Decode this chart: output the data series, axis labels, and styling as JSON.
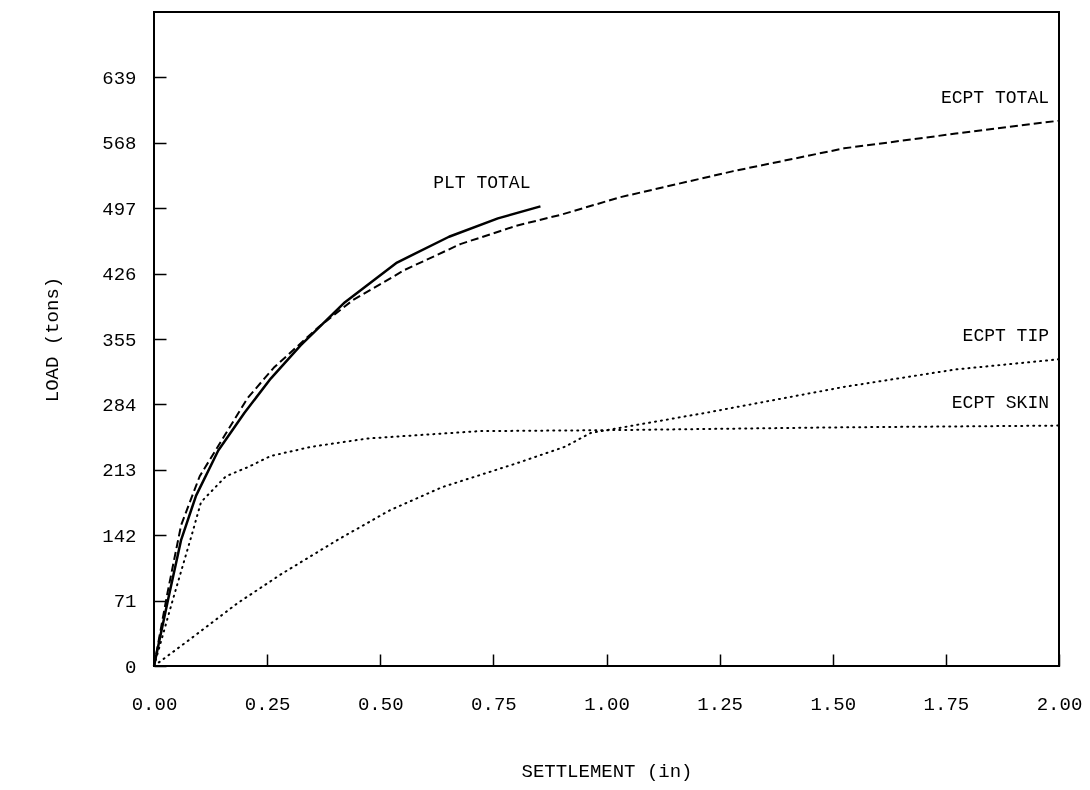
{
  "chart_data": {
    "type": "line",
    "xlabel": "SETTLEMENT (in)",
    "ylabel": "LOAD (tons)",
    "xlim": [
      0,
      2
    ],
    "ylim": [
      0,
      710
    ],
    "xticks": [
      {
        "value": 0,
        "label": "0.00"
      },
      {
        "value": 0.25,
        "label": "0.25"
      },
      {
        "value": 0.5,
        "label": "0.50"
      },
      {
        "value": 0.75,
        "label": "0.75"
      },
      {
        "value": 1,
        "label": "1.00"
      },
      {
        "value": 1.25,
        "label": "1.25"
      },
      {
        "value": 1.5,
        "label": "1.50"
      },
      {
        "value": 1.75,
        "label": "1.75"
      },
      {
        "value": 2,
        "label": "2.00"
      }
    ],
    "yticks": [
      0,
      71,
      142,
      213,
      284,
      355,
      426,
      497,
      568,
      639
    ],
    "grid": false,
    "marker": "none",
    "series": [
      {
        "name": "PLT TOTAL",
        "color": "#000000",
        "line_style": "solid",
        "x": [
          0,
          0.031,
          0.06,
          0.093,
          0.142,
          0.2,
          0.258,
          0.324,
          0.422,
          0.537,
          0.652,
          0.76,
          0.854
        ],
        "values": [
          0,
          72,
          137,
          185,
          234,
          275,
          312,
          348,
          395,
          438,
          466,
          486,
          499
        ]
      },
      {
        "name": "ECPT TOTAL",
        "color": "#000000",
        "line_style": "dashed",
        "x": [
          0,
          0.03,
          0.06,
          0.101,
          0.157,
          0.207,
          0.265,
          0.364,
          0.439,
          0.554,
          0.677,
          0.801,
          0.9,
          1.031,
          1.278,
          1.525,
          1.772,
          2
        ],
        "values": [
          0,
          80,
          153,
          206,
          251,
          291,
          324,
          368,
          397,
          430,
          458,
          478,
          490,
          509,
          537,
          562,
          578,
          592
        ]
      },
      {
        "name": "ECPT TIP",
        "color": "#000000",
        "line_style": "dotted",
        "x": [
          0,
          0.085,
          0.184,
          0.282,
          0.406,
          0.521,
          0.636,
          0.801,
          0.908,
          0.965,
          1.221,
          1.525,
          1.772,
          2
        ],
        "values": [
          0,
          31,
          68,
          100,
          137,
          169,
          194,
          220,
          238,
          253,
          275,
          303,
          322,
          333
        ]
      },
      {
        "name": "ECPT SKIN",
        "color": "#000000",
        "line_style": "dotted",
        "x": [
          0,
          0.044,
          0.085,
          0.104,
          0.159,
          0.208,
          0.258,
          0.348,
          0.472,
          0.595,
          0.719,
          1,
          1.5,
          2
        ],
        "values": [
          0,
          76,
          145,
          178,
          206,
          216,
          228,
          238,
          247,
          251,
          255,
          256,
          259,
          261
        ]
      }
    ]
  }
}
